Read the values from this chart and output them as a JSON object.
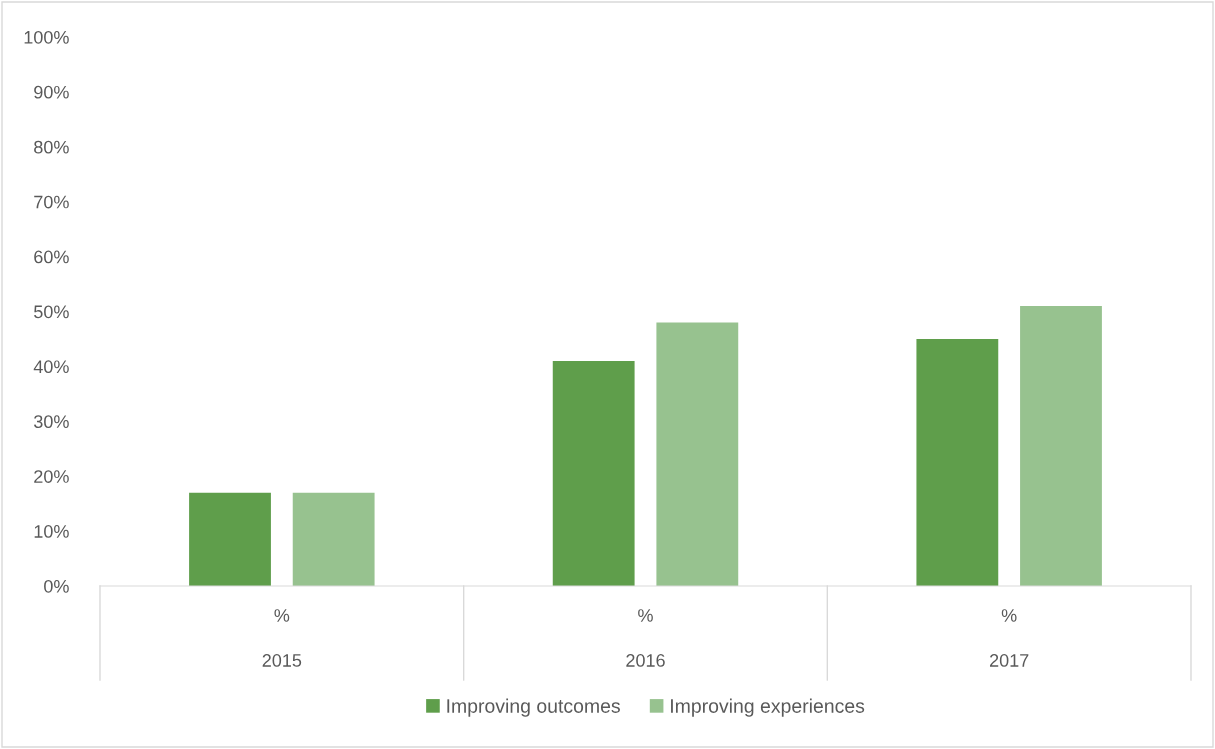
{
  "chart_data": {
    "type": "bar",
    "categories": [
      "%\n2015",
      "%\n2016",
      "%\n2017"
    ],
    "series": [
      {
        "name": "Improving outcomes",
        "color": "#5f9e4b",
        "values": [
          17,
          41,
          45
        ]
      },
      {
        "name": "Improving experiences",
        "color": "#97c28f",
        "values": [
          17,
          48,
          51
        ]
      }
    ],
    "ylim": [
      0,
      100
    ],
    "yticks": [
      {
        "value": 0,
        "label": "0%"
      },
      {
        "value": 10,
        "label": "10%"
      },
      {
        "value": 20,
        "label": "20%"
      },
      {
        "value": 30,
        "label": "30%"
      },
      {
        "value": 40,
        "label": "40%"
      },
      {
        "value": 50,
        "label": "50%"
      },
      {
        "value": 60,
        "label": "60%"
      },
      {
        "value": 70,
        "label": "70%"
      },
      {
        "value": 80,
        "label": "80%"
      },
      {
        "value": 90,
        "label": "90%"
      },
      {
        "value": 100,
        "label": "100%"
      }
    ],
    "grid": false,
    "legend": "bottom"
  }
}
